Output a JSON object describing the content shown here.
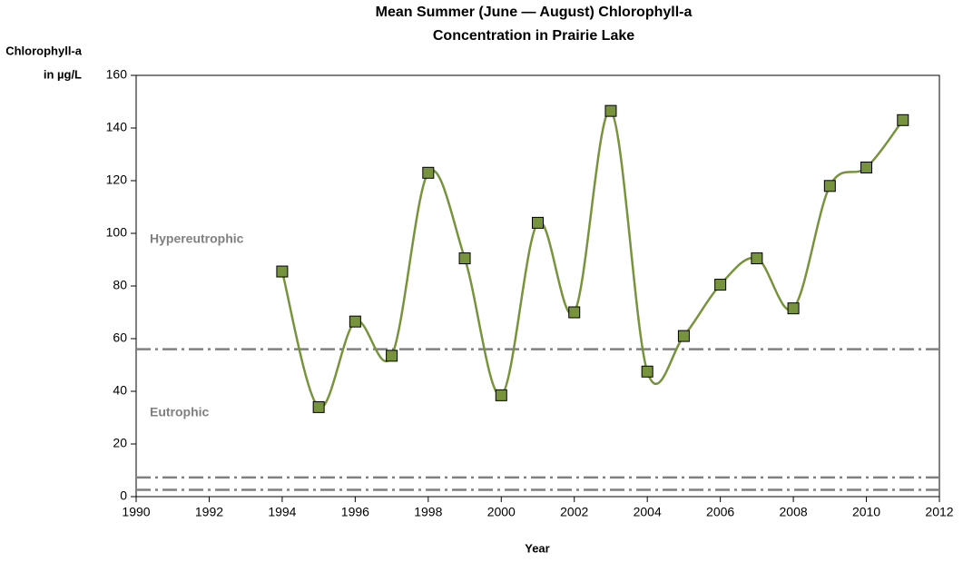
{
  "chart_data": {
    "type": "line",
    "title": [
      "Mean Summer (June — August) Chlorophyll-a",
      "Concentration in Prairie Lake"
    ],
    "ylabel": [
      "Chlorophyll-a",
      "in µg/L"
    ],
    "xlabel": "Year",
    "x": [
      1994,
      1995,
      1996,
      1997,
      1998,
      1999,
      2000,
      2001,
      2002,
      2003,
      2004,
      2005,
      2006,
      2007,
      2008,
      2009,
      2010,
      2011
    ],
    "series": [
      {
        "name": "Chlorophyll-a",
        "color": "#77933c",
        "values": [
          85.5,
          34,
          66.5,
          53.5,
          123,
          90.5,
          38.5,
          104,
          70,
          146.5,
          47.5,
          61,
          80.5,
          90.5,
          71.5,
          118,
          125,
          143
        ]
      }
    ],
    "reference_lines": [
      56,
      7.3,
      2.6
    ],
    "annotations": [
      "Hypereutrophic",
      "Eutrophic"
    ],
    "xlim": [
      1990,
      2012
    ],
    "xticks": [
      1990,
      1992,
      1994,
      1996,
      1998,
      2000,
      2002,
      2004,
      2006,
      2008,
      2010,
      2012
    ],
    "ylim": [
      0,
      160
    ],
    "yticks": [
      0,
      20,
      40,
      60,
      80,
      100,
      120,
      140,
      160
    ],
    "smooth": true
  }
}
